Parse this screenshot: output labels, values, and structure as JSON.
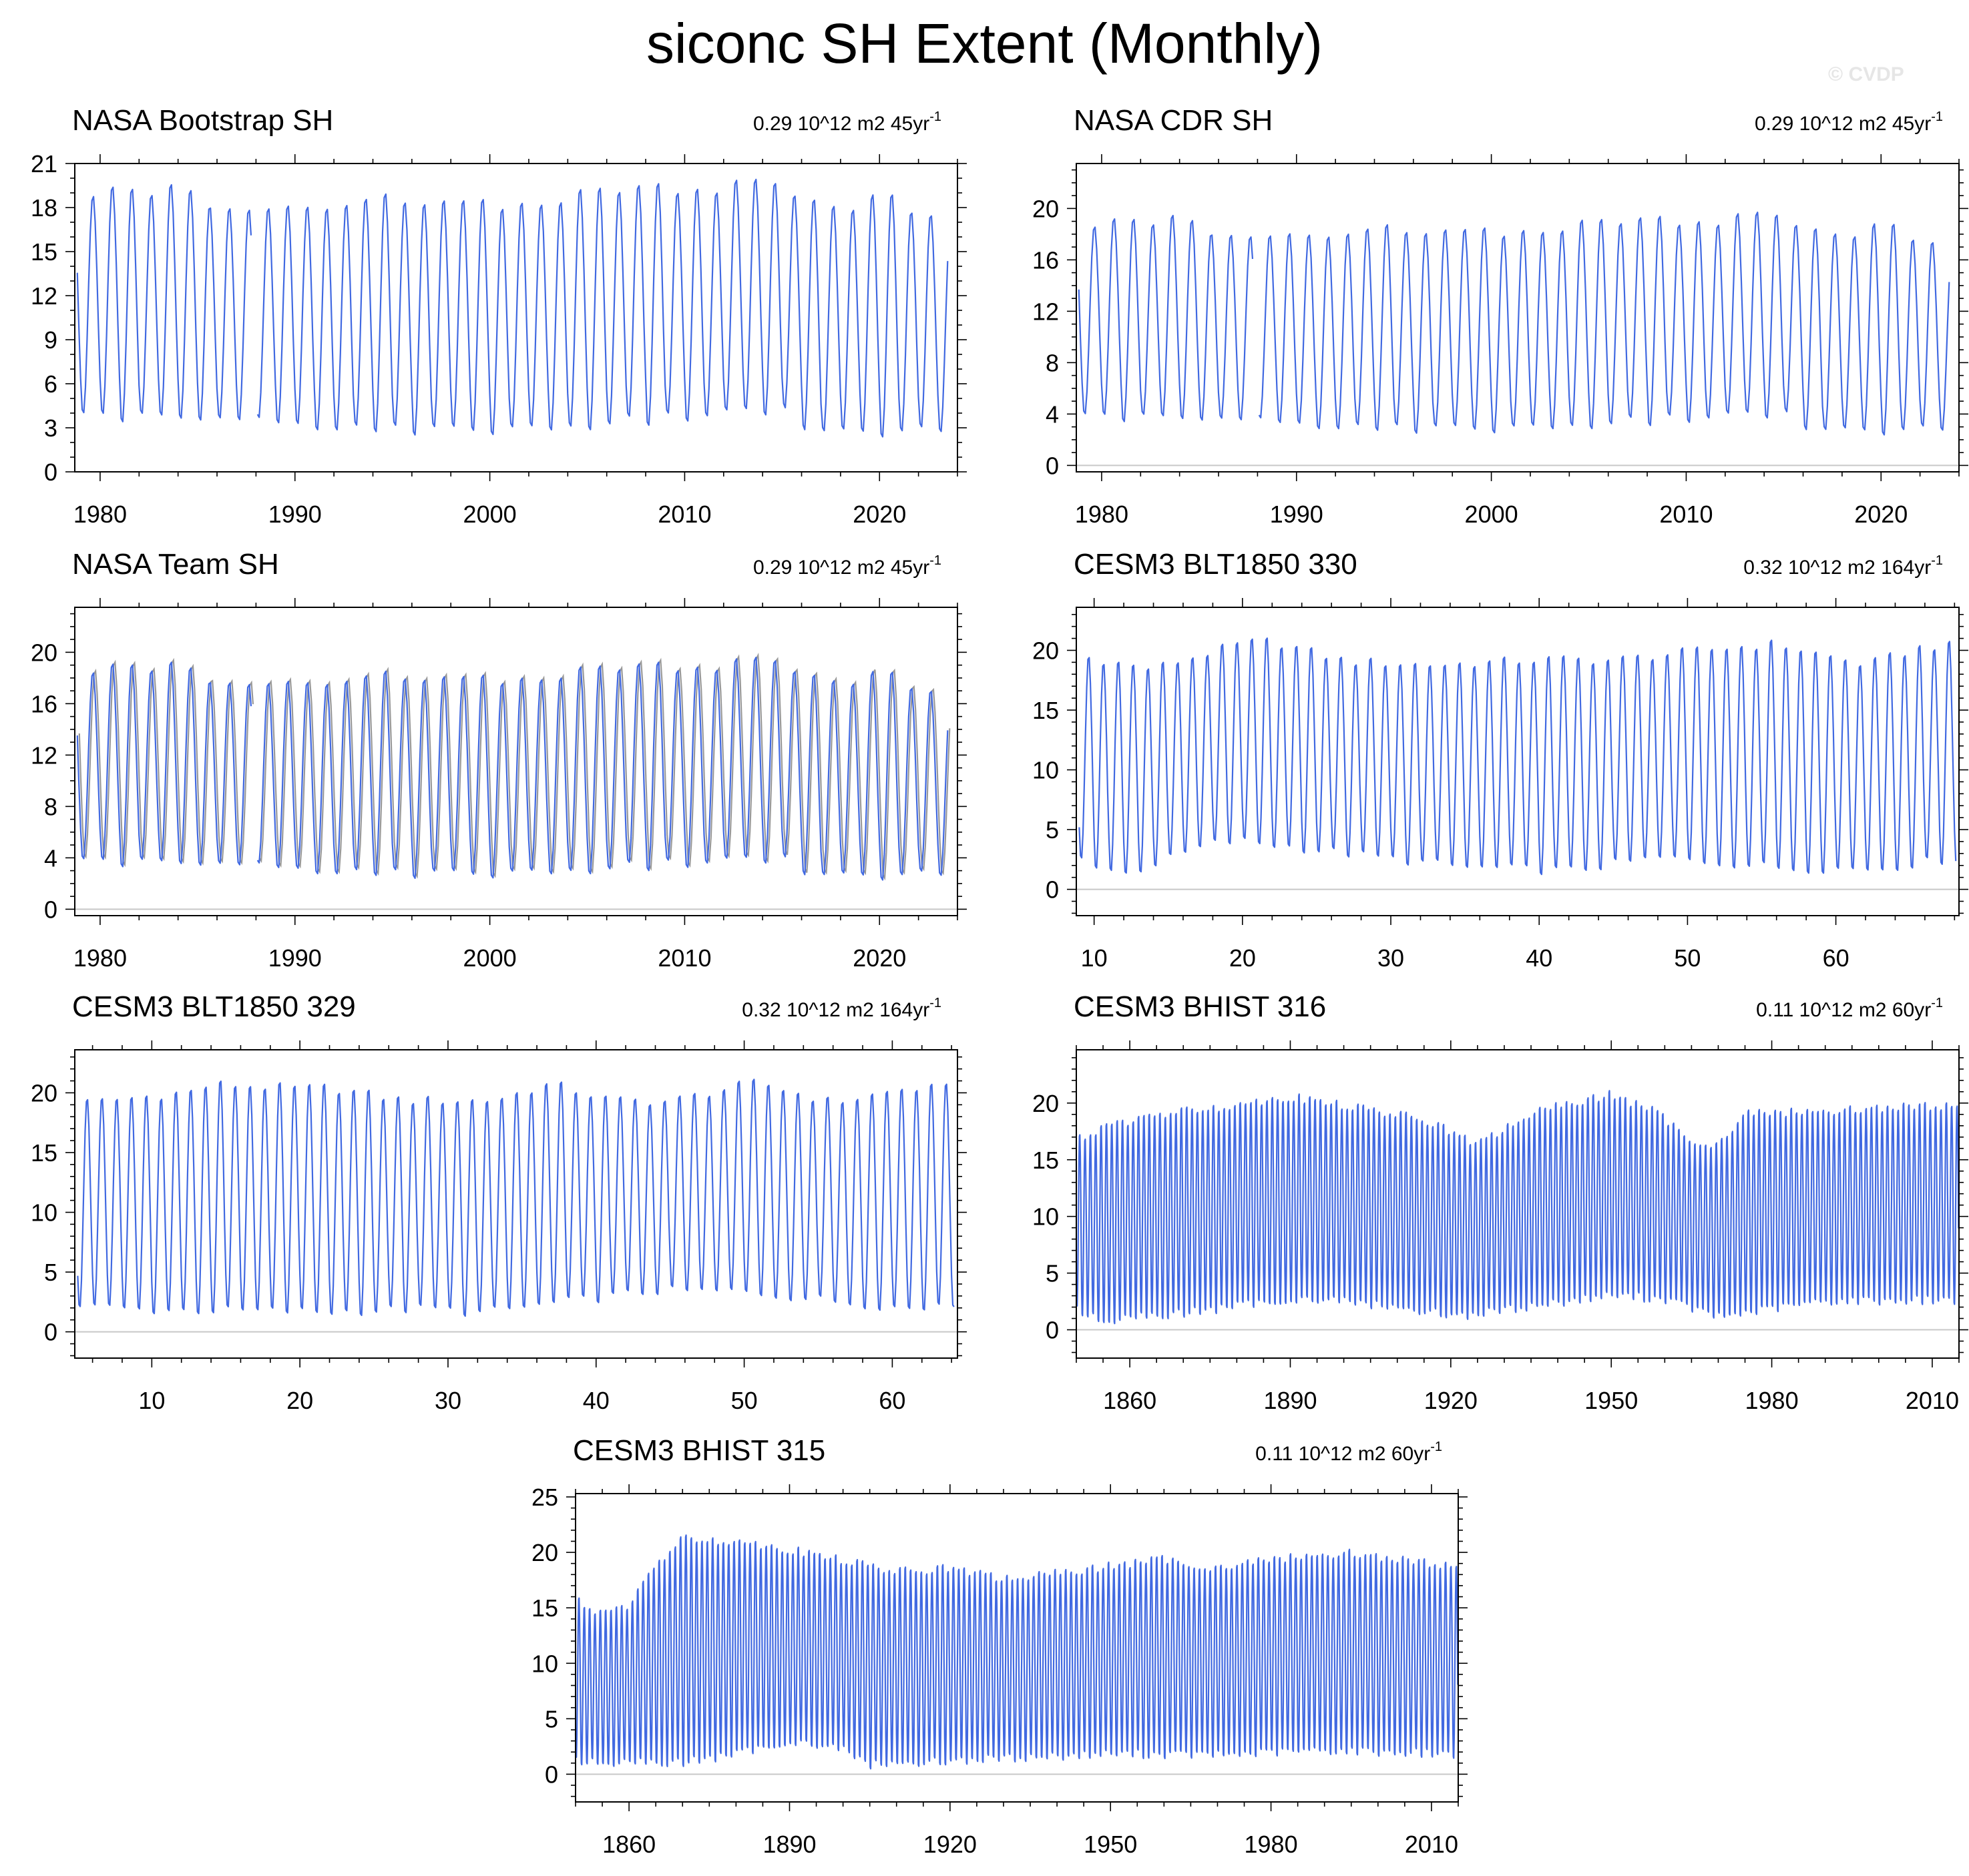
{
  "figure": {
    "title": "siconc SH Extent (Monthly)",
    "watermark": "© CVDP"
  },
  "chart_data": [
    {
      "type": "line",
      "title": "NASA Bootstrap SH",
      "trend": {
        "value": "0.29 10^12 m2 45yr",
        "exp": "-1"
      },
      "xlim": [
        1978.7,
        2024.0
      ],
      "ylim": [
        0,
        21
      ],
      "xticks": [
        1980,
        1990,
        2000,
        2010,
        2020
      ],
      "yticks": [
        0,
        3,
        6,
        9,
        12,
        15,
        18,
        21
      ],
      "x_minor_step": 2,
      "y_minor_step": 1,
      "zero_line": false,
      "xlabel": "",
      "ylabel": "",
      "series": [
        {
          "name": "NASA Bootstrap SH",
          "color": "#4169e1",
          "kind": "seasonal",
          "start": 1978.83,
          "end": 2023.5,
          "gap": [
            1987.8,
            1988.0
          ],
          "max_base": 19.0,
          "min_base": 3.5,
          "max_points": [
            [
              1979,
              18.6
            ],
            [
              1980,
              19.4
            ],
            [
              1981,
              19.3
            ],
            [
              1985,
              19.4
            ],
            [
              1986,
              17.8
            ],
            [
              1991,
              18.3
            ],
            [
              1995,
              18.8
            ],
            [
              2002,
              18.3
            ],
            [
              2006,
              19.4
            ],
            [
              2012,
              19.5
            ],
            [
              2014,
              20.3
            ],
            [
              2016,
              18.9
            ],
            [
              2017,
              18.1
            ],
            [
              2019,
              18.4
            ],
            [
              2020,
              19.4
            ],
            [
              2023,
              17.0
            ]
          ],
          "min_points": [
            [
              1980,
              3.6
            ],
            [
              1988,
              3.3
            ],
            [
              1993,
              2.9
            ],
            [
              1997,
              2.6
            ],
            [
              2005,
              3.0
            ],
            [
              2015,
              4.2
            ],
            [
              2017,
              2.3
            ],
            [
              2022,
              2.6
            ],
            [
              2023,
              2.5
            ]
          ]
        }
      ]
    },
    {
      "type": "line",
      "title": "NASA CDR SH",
      "trend": {
        "value": "0.29 10^12 m2 45yr",
        "exp": "-1"
      },
      "xlim": [
        1978.7,
        2024.0
      ],
      "ylim": [
        -0.5,
        23.5
      ],
      "xticks": [
        1980,
        1990,
        2000,
        2010,
        2020
      ],
      "yticks": [
        0,
        4,
        8,
        12,
        16,
        20
      ],
      "x_minor_step": 2,
      "y_minor_step": 1,
      "zero_line": true,
      "xlabel": "",
      "ylabel": "",
      "series": [
        {
          "name": "NASA CDR SH",
          "color": "#4169e1",
          "kind": "seasonal",
          "start": 1978.83,
          "end": 2023.5,
          "gap": [
            1987.8,
            1988.0
          ],
          "max_base": 18.9,
          "min_base": 3.5,
          "max_points": [
            [
              1979,
              18.8
            ],
            [
              1981,
              19.2
            ],
            [
              1985,
              19.3
            ],
            [
              1986,
              17.8
            ],
            [
              1991,
              18.2
            ],
            [
              1995,
              18.6
            ],
            [
              2002,
              18.3
            ],
            [
              2006,
              19.2
            ],
            [
              2012,
              19.2
            ],
            [
              2014,
              20.1
            ],
            [
              2016,
              18.8
            ],
            [
              2017,
              18.0
            ],
            [
              2019,
              18.4
            ],
            [
              2020,
              19.3
            ],
            [
              2023,
              16.9
            ]
          ],
          "min_points": [
            [
              1980,
              3.6
            ],
            [
              1988,
              3.3
            ],
            [
              1993,
              2.9
            ],
            [
              1997,
              2.6
            ],
            [
              2005,
              3.0
            ],
            [
              2015,
              4.0
            ],
            [
              2017,
              2.3
            ],
            [
              2022,
              2.6
            ],
            [
              2023,
              2.5
            ]
          ]
        }
      ]
    },
    {
      "type": "line",
      "title": "NASA Team SH",
      "trend": {
        "value": "0.29 10^12 m2 45yr",
        "exp": "-1"
      },
      "xlim": [
        1978.7,
        2024.0
      ],
      "ylim": [
        -0.5,
        23.5
      ],
      "xticks": [
        1980,
        1990,
        2000,
        2010,
        2020
      ],
      "yticks": [
        0,
        4,
        8,
        12,
        16,
        20
      ],
      "x_minor_step": 2,
      "y_minor_step": 1,
      "zero_line": true,
      "xlabel": "",
      "ylabel": "",
      "series": [
        {
          "name": "NASA Team SH",
          "color": "#4169e1",
          "kind": "seasonal",
          "shadow": "#999999",
          "start": 1978.83,
          "end": 2023.5,
          "gap": [
            1987.8,
            1988.0
          ],
          "max_base": 18.6,
          "min_base": 3.4,
          "max_points": [
            [
              1979,
              18.6
            ],
            [
              1981,
              19.1
            ],
            [
              1985,
              19.0
            ],
            [
              1986,
              17.5
            ],
            [
              1991,
              17.9
            ],
            [
              1995,
              18.4
            ],
            [
              2002,
              18.0
            ],
            [
              2006,
              19.0
            ],
            [
              2012,
              19.1
            ],
            [
              2014,
              20.0
            ],
            [
              2016,
              18.6
            ],
            [
              2017,
              17.8
            ],
            [
              2019,
              18.1
            ],
            [
              2020,
              19.0
            ],
            [
              2023,
              16.5
            ]
          ],
          "min_points": [
            [
              1980,
              3.5
            ],
            [
              1988,
              3.2
            ],
            [
              1993,
              2.8
            ],
            [
              1997,
              2.5
            ],
            [
              2005,
              2.9
            ],
            [
              2015,
              3.9
            ],
            [
              2017,
              2.2
            ],
            [
              2022,
              2.5
            ],
            [
              2023,
              2.4
            ]
          ]
        }
      ]
    },
    {
      "type": "line",
      "title": "CESM3 BLT1850 330",
      "trend": {
        "value": "0.32 10^12 m2 164yr",
        "exp": "-1"
      },
      "xlim": [
        8.8,
        68.3
      ],
      "ylim": [
        -2.2,
        23.6
      ],
      "xticks": [
        10,
        20,
        30,
        40,
        50,
        60
      ],
      "yticks": [
        0,
        5,
        10,
        15,
        20
      ],
      "x_minor_step": 2,
      "y_minor_step": 1,
      "zero_line": true,
      "xlabel": "",
      "ylabel": "",
      "series": [
        {
          "name": "CESM3 BLT1850 330",
          "color": "#4169e1",
          "kind": "seasonal",
          "start": 9.0,
          "end": 68.1,
          "gap": null,
          "max_base": 20.0,
          "min_base": 2.1,
          "max_points": [
            [
              10,
              19.6
            ],
            [
              13,
              18.8
            ],
            [
              14,
              18.7
            ],
            [
              20,
              20.8
            ],
            [
              22,
              21.0
            ],
            [
              27,
              19.3
            ],
            [
              33,
              19.0
            ],
            [
              41,
              19.5
            ],
            [
              45,
              19.4
            ],
            [
              53,
              20.5
            ],
            [
              56,
              20.8
            ],
            [
              62,
              19.0
            ],
            [
              66,
              20.6
            ]
          ],
          "min_points": [
            [
              9,
              2.4
            ],
            [
              12,
              1.0
            ],
            [
              18,
              3.6
            ],
            [
              20,
              3.8
            ],
            [
              35,
              1.6
            ],
            [
              42,
              1.3
            ],
            [
              48,
              2.4
            ],
            [
              57,
              1.5
            ],
            [
              63,
              1.5
            ],
            [
              67,
              2.2
            ]
          ]
        }
      ]
    },
    {
      "type": "line",
      "title": "CESM3 BLT1850 329",
      "trend": {
        "value": "0.32 10^12 m2 164yr",
        "exp": "-1"
      },
      "xlim": [
        4.8,
        64.4
      ],
      "ylim": [
        -2.2,
        23.6
      ],
      "xticks": [
        10,
        20,
        30,
        40,
        50,
        60
      ],
      "yticks": [
        0,
        5,
        10,
        15,
        20
      ],
      "x_minor_step": 2,
      "y_minor_step": 1,
      "zero_line": true,
      "xlabel": "",
      "ylabel": "",
      "series": [
        {
          "name": "CESM3 BLT1850 329",
          "color": "#4169e1",
          "kind": "seasonal",
          "start": 5.0,
          "end": 64.2,
          "gap": null,
          "max_base": 20.0,
          "min_base": 2.5,
          "max_points": [
            [
              5,
              19.3
            ],
            [
              13,
              20.4
            ],
            [
              14,
              21.0
            ],
            [
              20,
              20.6
            ],
            [
              22,
              20.7
            ],
            [
              27,
              19.6
            ],
            [
              33,
              19.6
            ],
            [
              37,
              21.0
            ],
            [
              41,
              19.6
            ],
            [
              45,
              19.5
            ],
            [
              50,
              20.9
            ],
            [
              51,
              21.1
            ],
            [
              56,
              19.4
            ],
            [
              61,
              20.6
            ]
          ],
          "min_points": [
            [
              5,
              2.0
            ],
            [
              9,
              1.6
            ],
            [
              22,
              1.4
            ],
            [
              29,
              1.7
            ],
            [
              32,
              1.3
            ],
            [
              44,
              3.2
            ],
            [
              50,
              3.1
            ],
            [
              62,
              1.6
            ],
            [
              63,
              2.2
            ]
          ]
        }
      ]
    },
    {
      "type": "line",
      "title": "CESM3 BHIST 316",
      "trend": {
        "value": "0.11 10^12 m2 60yr",
        "exp": "-1"
      },
      "xlim": [
        1850,
        2015
      ],
      "ylim": [
        -2.5,
        24.7
      ],
      "xticks": [
        1860,
        1890,
        1920,
        1950,
        1980,
        2010
      ],
      "yticks": [
        0,
        5,
        10,
        15,
        20
      ],
      "x_minor_step": 5,
      "y_minor_step": 1,
      "zero_line": true,
      "xlabel": "",
      "ylabel": "",
      "series": [
        {
          "name": "CESM3 BHIST 316",
          "color": "#4169e1",
          "kind": "seasonal",
          "start": 1850.0,
          "end": 2014.9,
          "gap": null,
          "max_base": 19.0,
          "min_base": 2.0,
          "max_points": [
            [
              1850,
              17.0
            ],
            [
              1858,
              18.5
            ],
            [
              1870,
              19.5
            ],
            [
              1880,
              20.1
            ],
            [
              1890,
              20.8
            ],
            [
              1900,
              20.0
            ],
            [
              1915,
              18.8
            ],
            [
              1923,
              17.0
            ],
            [
              1925,
              16.5
            ],
            [
              1935,
              19.3
            ],
            [
              1945,
              20.5
            ],
            [
              1950,
              21.0
            ],
            [
              1958,
              19.5
            ],
            [
              1965,
              17.0
            ],
            [
              1970,
              16.5
            ],
            [
              1975,
              19.3
            ],
            [
              1990,
              19.5
            ],
            [
              2000,
              19.8
            ],
            [
              2014,
              20.0
            ]
          ],
          "min_points": [
            [
              1850,
              1.6
            ],
            [
              1855,
              0.5
            ],
            [
              1875,
              1.5
            ],
            [
              1890,
              2.5
            ],
            [
              1900,
              2.3
            ],
            [
              1922,
              1.0
            ],
            [
              1950,
              2.8
            ],
            [
              1960,
              2.5
            ],
            [
              1970,
              0.9
            ],
            [
              1990,
              2.3
            ],
            [
              2014,
              2.4
            ]
          ]
        }
      ]
    },
    {
      "type": "line",
      "title": "CESM3 BHIST 315",
      "trend": {
        "value": "0.11 10^12 m2 60yr",
        "exp": "-1"
      },
      "xlim": [
        1850,
        2015
      ],
      "ylim": [
        -2.5,
        25.3
      ],
      "xticks": [
        1860,
        1890,
        1920,
        1950,
        1980,
        2010
      ],
      "yticks": [
        0,
        5,
        10,
        15,
        20,
        25
      ],
      "x_minor_step": 5,
      "y_minor_step": 1,
      "zero_line": true,
      "xlabel": "",
      "ylabel": "",
      "series": [
        {
          "name": "CESM3 BHIST 315",
          "color": "#4169e1",
          "kind": "seasonal",
          "start": 1850.0,
          "end": 2014.9,
          "gap": null,
          "max_base": 18.5,
          "min_base": 1.8,
          "max_points": [
            [
              1850,
              16.0
            ],
            [
              1855,
              14.5
            ],
            [
              1860,
              15.5
            ],
            [
              1865,
              19.0
            ],
            [
              1870,
              21.5
            ],
            [
              1880,
              21.3
            ],
            [
              1890,
              20.5
            ],
            [
              1900,
              19.5
            ],
            [
              1910,
              18.5
            ],
            [
              1920,
              18.8
            ],
            [
              1930,
              17.8
            ],
            [
              1940,
              18.3
            ],
            [
              1950,
              19.0
            ],
            [
              1960,
              19.6
            ],
            [
              1970,
              18.8
            ],
            [
              1980,
              19.6
            ],
            [
              1995,
              20.2
            ],
            [
              2005,
              19.5
            ],
            [
              2014,
              19.0
            ]
          ],
          "min_points": [
            [
              1850,
              1.0
            ],
            [
              1858,
              0.8
            ],
            [
              1870,
              0.8
            ],
            [
              1880,
              1.5
            ],
            [
              1890,
              2.8
            ],
            [
              1900,
              2.0
            ],
            [
              1905,
              0.6
            ],
            [
              1930,
              1.2
            ],
            [
              1950,
              1.6
            ],
            [
              1970,
              1.5
            ],
            [
              1990,
              1.9
            ],
            [
              2014,
              1.6
            ]
          ]
        }
      ]
    }
  ]
}
